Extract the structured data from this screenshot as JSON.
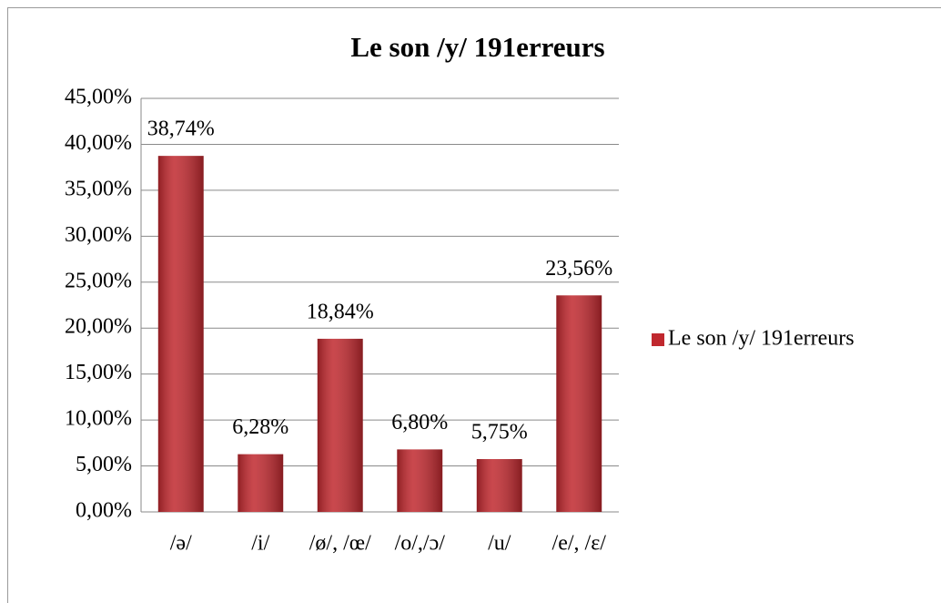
{
  "chart_data": {
    "type": "bar",
    "title": "Le son /y/ 191erreurs",
    "categories": [
      "/ə/",
      "/i/",
      "/ø/, /œ/",
      "/o/,/ɔ/",
      "/u/",
      "/e/, /ɛ/"
    ],
    "series": [
      {
        "name": "Le son /y/ 191erreurs",
        "color": "#c0282e",
        "values": [
          38.74,
          6.28,
          18.84,
          6.8,
          5.75,
          23.56
        ],
        "value_labels": [
          "38,74%",
          "6,28%",
          "18,84%",
          "6,80%",
          "5,75%",
          "23,56%"
        ]
      }
    ],
    "ylim": [
      0,
      45
    ],
    "yticks": [
      {
        "value": 0,
        "label": "0,00%"
      },
      {
        "value": 5,
        "label": "5,00%"
      },
      {
        "value": 10,
        "label": "10,00%"
      },
      {
        "value": 15,
        "label": "15,00%"
      },
      {
        "value": 20,
        "label": "20,00%"
      },
      {
        "value": 25,
        "label": "25,00%"
      },
      {
        "value": 30,
        "label": "30,00%"
      },
      {
        "value": 35,
        "label": "35,00%"
      },
      {
        "value": 40,
        "label": "40,00%"
      },
      {
        "value": 45,
        "label": "45,00%"
      }
    ],
    "grid": true,
    "legend": "right"
  }
}
